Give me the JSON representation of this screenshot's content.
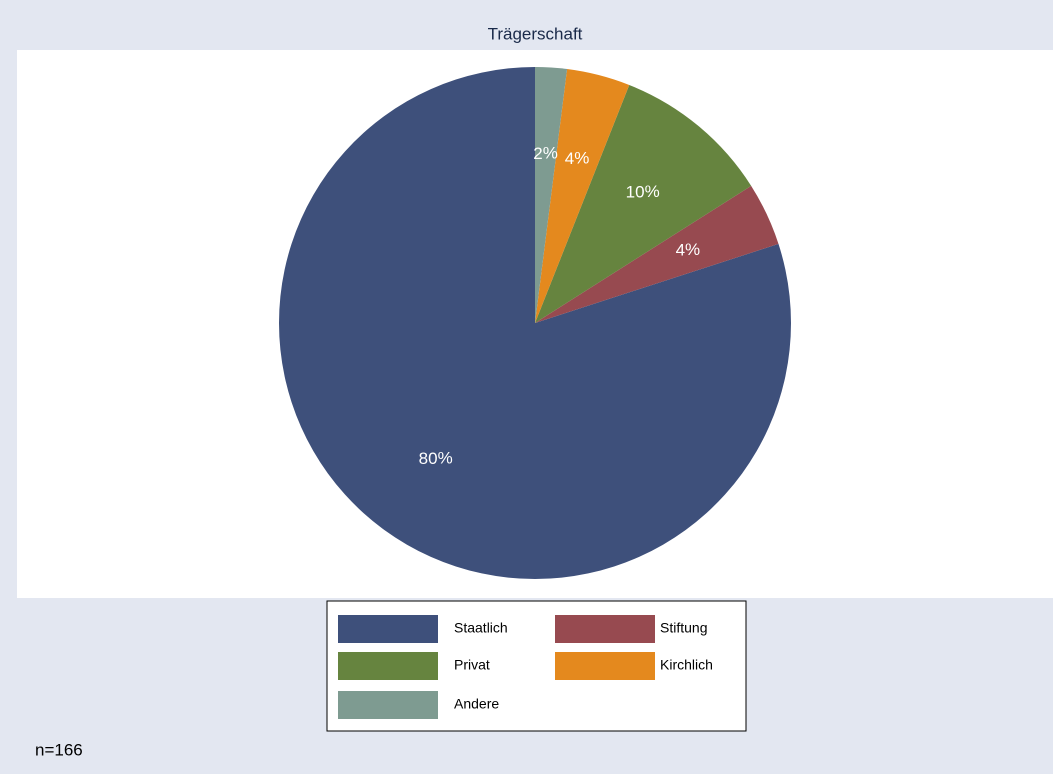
{
  "chart_data": {
    "type": "pie",
    "title": "Trägerschaft",
    "categories": [
      "Staatlich",
      "Stiftung",
      "Privat",
      "Kirchlich",
      "Andere"
    ],
    "values": [
      80,
      4,
      10,
      4,
      2
    ],
    "colors": [
      "#3e507b",
      "#974a50",
      "#66843f",
      "#e4891e",
      "#7e9b91"
    ],
    "direction": "counterclockwise",
    "note": "n=166"
  }
}
